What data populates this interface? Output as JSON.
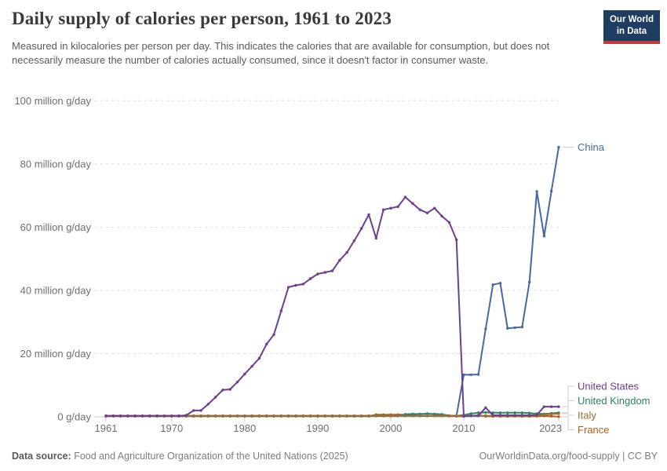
{
  "header": {
    "title": "Daily supply of calories per person, 1961 to 2023",
    "subtitle": "Measured in kilocalories per person per day. This indicates the calories that are available for consumption, but does not necessarily measure the number of calories actually consumed, since it doesn't factor in consumer waste.",
    "logo": {
      "line1": "Our World",
      "line2": "in Data"
    }
  },
  "footer": {
    "source_label": "Data source:",
    "source_text": " Food and Agriculture Organization of the United Nations (2025)",
    "link_text": "OurWorldinData.org/food-supply | CC BY"
  },
  "chart_data": {
    "type": "line",
    "title": "Daily supply of calories per person, 1961 to 2023",
    "xlabel": "",
    "ylabel": "",
    "ylim": [
      0,
      100
    ],
    "y_unit": "million g/day",
    "grid": "dashed horizontal",
    "legend_position": "end-of-line labels",
    "y_ticks": [
      0,
      20,
      40,
      60,
      80,
      100
    ],
    "y_tick_labels": [
      "0 g/day",
      "20 million g/day",
      "40 million g/day",
      "60 million g/day",
      "80 million g/day",
      "100 million g/day"
    ],
    "x_ticks": [
      1961,
      1970,
      1980,
      1990,
      2000,
      2010,
      2023
    ],
    "x": [
      1961,
      1962,
      1963,
      1964,
      1965,
      1966,
      1967,
      1968,
      1969,
      1970,
      1971,
      1972,
      1973,
      1974,
      1975,
      1976,
      1977,
      1978,
      1979,
      1980,
      1981,
      1982,
      1983,
      1984,
      1985,
      1986,
      1987,
      1988,
      1989,
      1990,
      1991,
      1992,
      1993,
      1994,
      1995,
      1996,
      1997,
      1998,
      1999,
      2000,
      2001,
      2002,
      2003,
      2004,
      2005,
      2006,
      2007,
      2008,
      2009,
      2010,
      2011,
      2012,
      2013,
      2014,
      2015,
      2016,
      2017,
      2018,
      2019,
      2020,
      2021,
      2022,
      2023
    ],
    "series": [
      {
        "name": "China",
        "color": "#4669A0",
        "label_placement": "top-right",
        "values": [
          0.3,
          0.3,
          0.3,
          0.3,
          0.3,
          0.3,
          0.3,
          0.3,
          0.3,
          0.3,
          0.3,
          0.3,
          0.3,
          0.3,
          0.3,
          0.3,
          0.3,
          0.3,
          0.3,
          0.3,
          0.3,
          0.3,
          0.3,
          0.3,
          0.3,
          0.3,
          0.3,
          0.3,
          0.3,
          0.3,
          0.3,
          0.3,
          0.3,
          0.3,
          0.3,
          0.3,
          0.3,
          0.3,
          0.3,
          0.3,
          0.3,
          0.3,
          0.3,
          0.3,
          0.3,
          0.3,
          0.3,
          0.3,
          0.3,
          13.3,
          13.3,
          13.4,
          27.8,
          41.8,
          42.3,
          28,
          28.2,
          28.4,
          42.6,
          71.3,
          57.2,
          71.4,
          85.3
        ]
      },
      {
        "name": "France",
        "color": "#BE5915",
        "label_placement": "right-stack",
        "values": [
          0.2,
          0.2,
          0.2,
          0.2,
          0.2,
          0.2,
          0.2,
          0.2,
          0.2,
          0.2,
          0.2,
          0.2,
          0.2,
          0.2,
          0.2,
          0.2,
          0.2,
          0.2,
          0.2,
          0.2,
          0.2,
          0.2,
          0.2,
          0.2,
          0.2,
          0.2,
          0.2,
          0.2,
          0.2,
          0.2,
          0.2,
          0.2,
          0.2,
          0.2,
          0.2,
          0.2,
          0.2,
          0.7,
          0.7,
          0.7,
          0.7,
          0.7,
          0.5,
          0.35,
          0.3,
          0.3,
          0.3,
          0.25,
          0.2,
          0.15,
          0.3,
          0.5,
          0.2,
          0.15,
          0.15,
          0.15,
          0.15,
          0.15,
          0.15,
          0.2,
          0.3,
          0.2,
          0.05
        ]
      },
      {
        "name": "United Kingdom",
        "color": "#2C8465",
        "label_placement": "right-stack",
        "values": [
          0.28,
          0.28,
          0.28,
          0.28,
          0.28,
          0.28,
          0.28,
          0.28,
          0.28,
          0.28,
          0.28,
          0.28,
          0.28,
          0.28,
          0.28,
          0.28,
          0.28,
          0.28,
          0.28,
          0.28,
          0.28,
          0.28,
          0.28,
          0.28,
          0.28,
          0.28,
          0.28,
          0.28,
          0.28,
          0.28,
          0.28,
          0.28,
          0.28,
          0.28,
          0.28,
          0.28,
          0.28,
          0.28,
          0.28,
          0.28,
          0.28,
          0.8,
          0.9,
          0.9,
          1,
          0.9,
          0.8,
          0.4,
          0.3,
          0.6,
          1,
          1.3,
          1.4,
          1.3,
          1.3,
          1.3,
          1.3,
          1.3,
          1.2,
          1,
          0.9,
          1.1,
          1.3
        ]
      },
      {
        "name": "Italy",
        "color": "#996D39",
        "label_placement": "right-stack",
        "values": [
          0.35,
          0.35,
          0.35,
          0.35,
          0.35,
          0.35,
          0.35,
          0.35,
          0.35,
          0.35,
          0.35,
          0.35,
          0.35,
          0.35,
          0.35,
          0.35,
          0.35,
          0.35,
          0.35,
          0.35,
          0.35,
          0.35,
          0.35,
          0.35,
          0.35,
          0.35,
          0.35,
          0.35,
          0.35,
          0.35,
          0.35,
          0.35,
          0.35,
          0.35,
          0.35,
          0.35,
          0.35,
          0.35,
          0.35,
          0.35,
          0.35,
          0.35,
          0.35,
          0.35,
          0.35,
          0.35,
          0.35,
          0.35,
          0.35,
          0.35,
          0.35,
          0.35,
          0.35,
          0.35,
          0.35,
          0.35,
          0.35,
          0.35,
          0.35,
          0.5,
          0.7,
          0.9,
          1
        ]
      },
      {
        "name": "United States",
        "color": "#6D3E91",
        "label_placement": "right-stack",
        "values": [
          0.3,
          0.3,
          0.3,
          0.3,
          0.3,
          0.3,
          0.3,
          0.3,
          0.3,
          0.3,
          0.3,
          0.5,
          2,
          2,
          4,
          6.2,
          8.5,
          8.7,
          11,
          13.5,
          16,
          18.5,
          23,
          26,
          33.5,
          41,
          41.6,
          42,
          43.7,
          45.2,
          45.7,
          46.2,
          49.5,
          52,
          55.7,
          59.6,
          64,
          56.5,
          65.5,
          66,
          66.5,
          69.5,
          67.5,
          65.5,
          64.5,
          66,
          63.5,
          61.5,
          56,
          0.2,
          0.3,
          0.3,
          2.9,
          0.5,
          0.5,
          0.5,
          0.5,
          0.5,
          0.5,
          0.6,
          3.2,
          3.2,
          3.2
        ]
      }
    ],
    "right_label_order": [
      "United States",
      "United Kingdom",
      "Italy",
      "France"
    ]
  }
}
